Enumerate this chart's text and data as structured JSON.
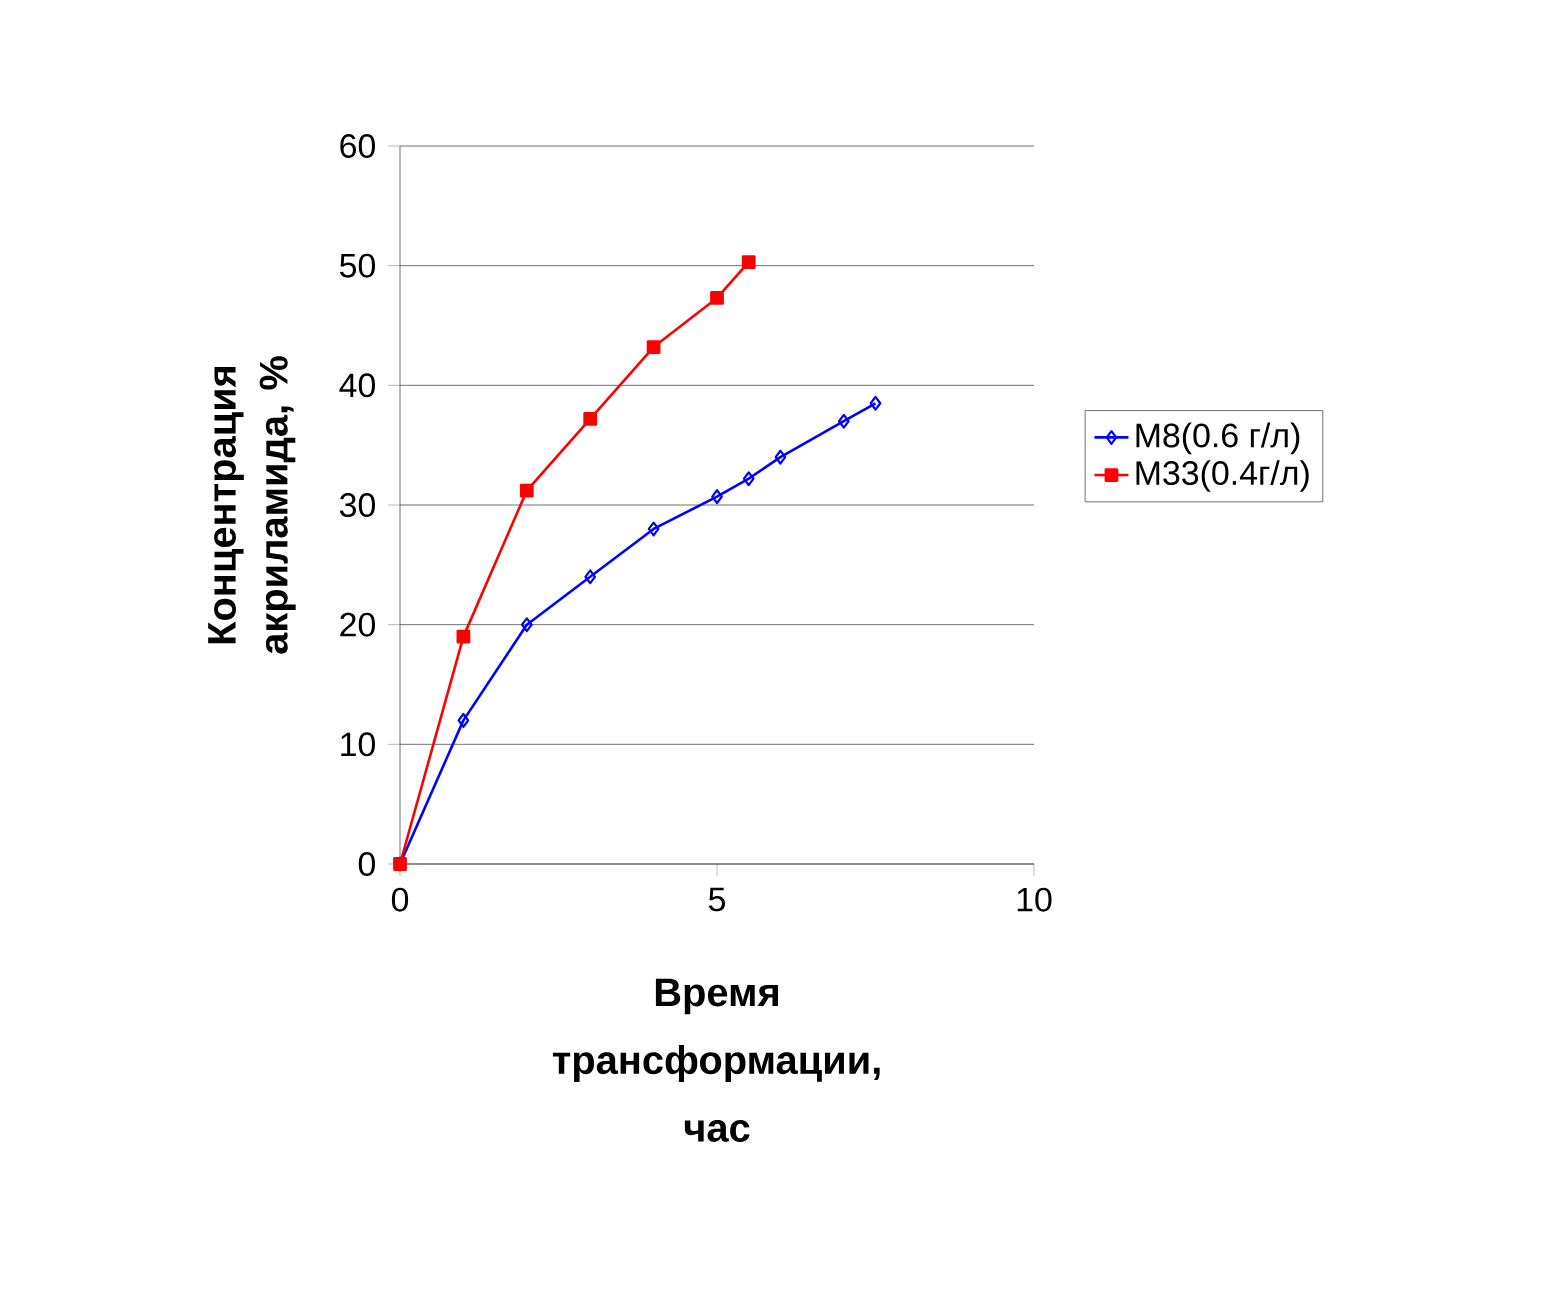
{
  "chart_data": {
    "type": "line",
    "xlabel": "Время трансформации, час",
    "ylabel": "Концентрация акриламида, %",
    "xlim": [
      0,
      10
    ],
    "xticks": [
      0,
      5,
      10
    ],
    "ylim": [
      0,
      60
    ],
    "yticks": [
      0,
      10,
      20,
      30,
      40,
      50,
      60
    ],
    "grid": "y",
    "legend": "right",
    "line_style": "solid",
    "series": [
      {
        "name": "M8(0.6 г/л)",
        "color": "#0000ff",
        "marker": "diamond",
        "x": [
          0,
          1,
          2,
          3,
          4,
          5,
          5.5,
          6,
          7,
          7.5
        ],
        "values": [
          0,
          12,
          20,
          24,
          28,
          30.7,
          32.2,
          34,
          37,
          38.5
        ]
      },
      {
        "name": "M33(0.4г/л)",
        "color": "#ff0000",
        "marker": "square",
        "x": [
          0,
          1,
          2,
          3,
          4,
          5,
          5.5
        ],
        "values": [
          0,
          19,
          31.2,
          37.2,
          43.2,
          47.3,
          50.3
        ]
      }
    ]
  }
}
